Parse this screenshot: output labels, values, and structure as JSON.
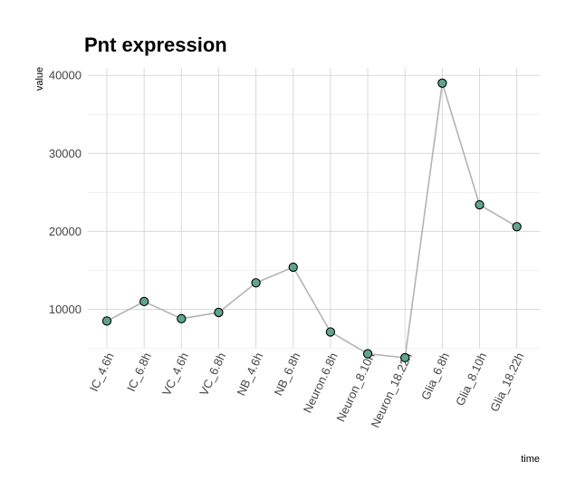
{
  "chart_data": {
    "type": "line",
    "title": "Pnt expression",
    "xlabel": "time",
    "ylabel": "value",
    "categories": [
      "IC_4.6h",
      "IC_6.8h",
      "VC_4.6h",
      "VC_6.8h",
      "NB_4.6h",
      "NB_6.8h",
      "Neuron.6.8h",
      "Neuron_8.10h",
      "Neuron_18.22h",
      "Glia_6.8h",
      "Glia_8.10h",
      "Glia_18.22h"
    ],
    "series": [
      {
        "values": [
          8500,
          11000,
          8800,
          9600,
          13400,
          15400,
          7100,
          4300,
          3800,
          39000,
          23400,
          20600
        ]
      }
    ],
    "yticks": [
      10000,
      20000,
      30000,
      40000
    ],
    "ylim": [
      5000,
      41000
    ],
    "grid": true,
    "colors": {
      "point_fill": "#5fa58a",
      "line": "#b3b3b3",
      "point_edge": "#000000"
    }
  }
}
